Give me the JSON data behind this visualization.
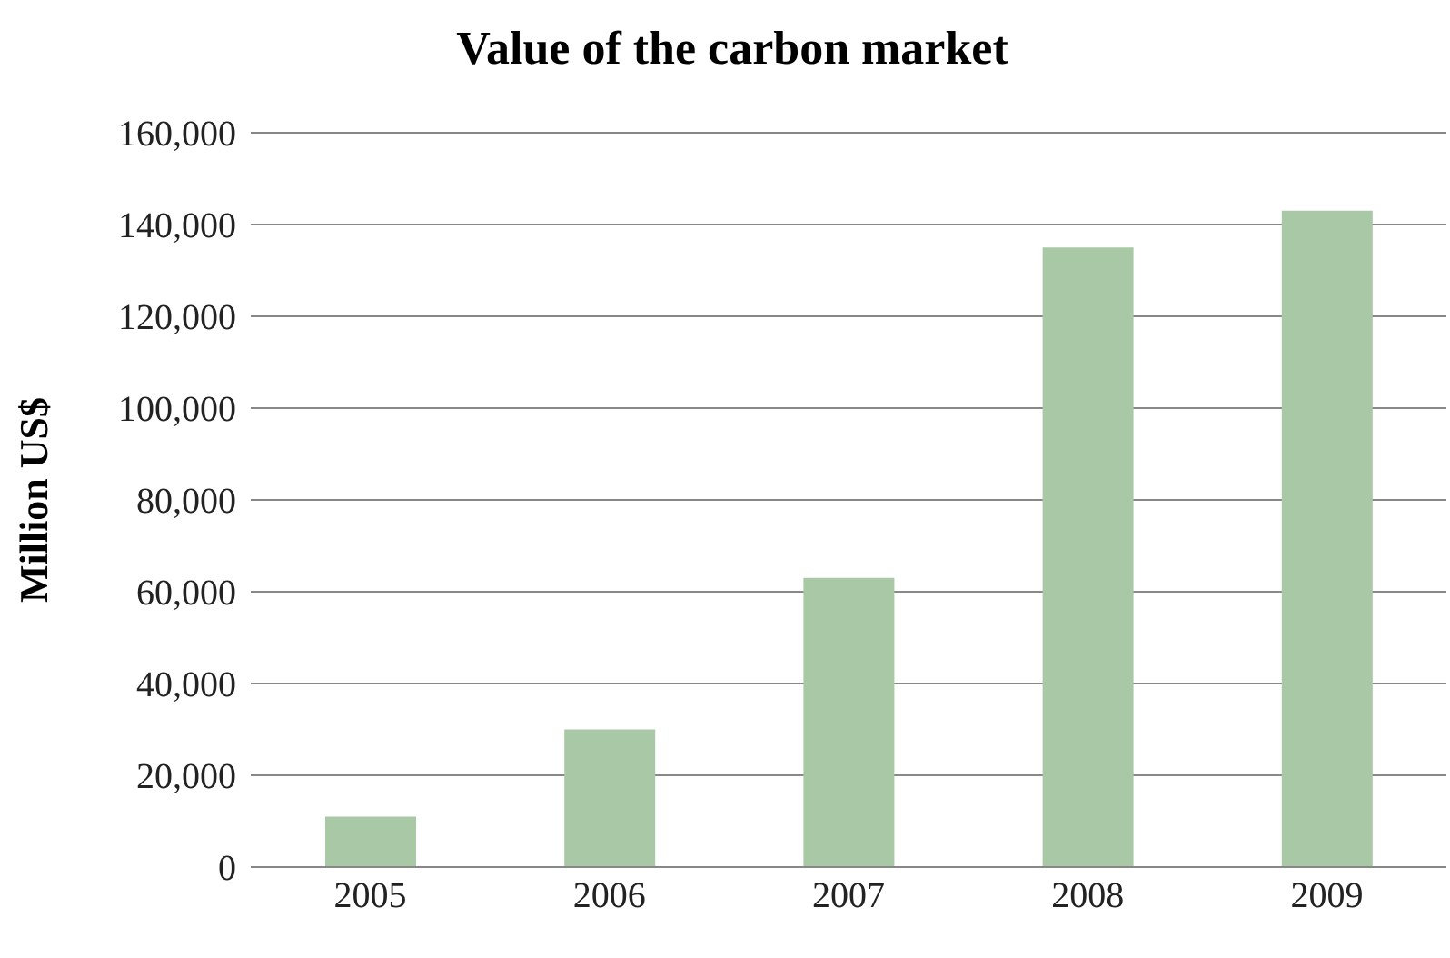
{
  "chart_data": {
    "type": "bar",
    "title": "Value of the carbon market",
    "ylabel": "Million US$",
    "categories": [
      "2005",
      "2006",
      "2007",
      "2008",
      "2009"
    ],
    "values": [
      11000,
      30000,
      63000,
      135000,
      143000
    ],
    "color": "#a9c8a5",
    "ylim": [
      0,
      160000
    ],
    "yticks": [
      {
        "value": 0,
        "label": "0"
      },
      {
        "value": 20000,
        "label": "20,000"
      },
      {
        "value": 40000,
        "label": "40,000"
      },
      {
        "value": 60000,
        "label": "60,000"
      },
      {
        "value": 80000,
        "label": "80,000"
      },
      {
        "value": 100000,
        "label": "100,000"
      },
      {
        "value": 120000,
        "label": "120,000"
      },
      {
        "value": 140000,
        "label": "140,000"
      },
      {
        "value": 160000,
        "label": "160,000"
      }
    ],
    "grid": "y"
  }
}
